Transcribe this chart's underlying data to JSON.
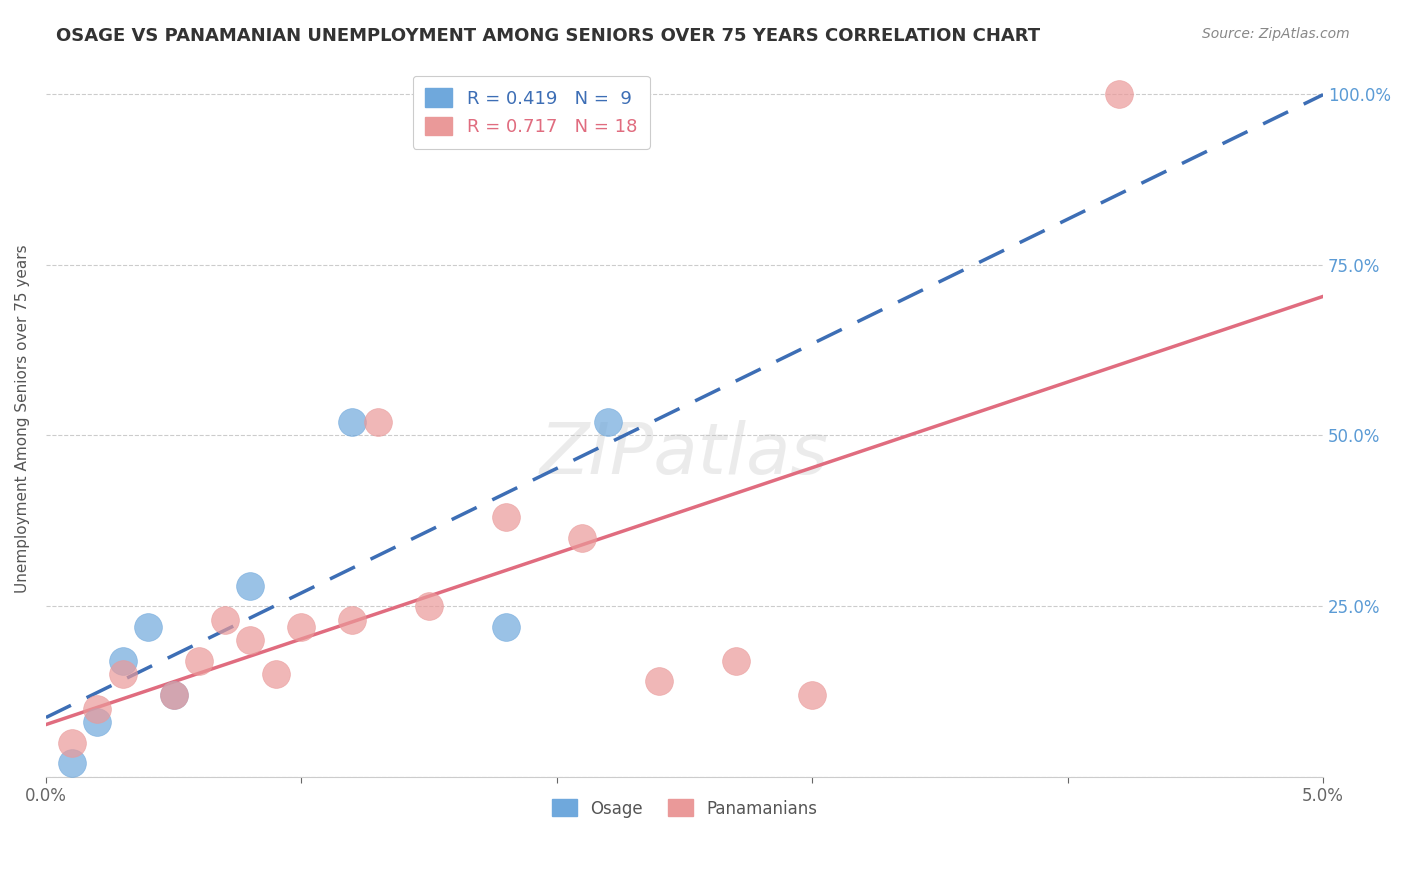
{
  "title": "OSAGE VS PANAMANIAN UNEMPLOYMENT AMONG SENIORS OVER 75 YEARS CORRELATION CHART",
  "source": "Source: ZipAtlas.com",
  "ylabel": "Unemployment Among Seniors over 75 years",
  "xlim": [
    0.0,
    0.05
  ],
  "ylim": [
    0.0,
    1.05
  ],
  "xticks": [
    0.0,
    0.01,
    0.02,
    0.03,
    0.04,
    0.05
  ],
  "xtick_labels": [
    "0.0%",
    "",
    "",
    "",
    "",
    "5.0%"
  ],
  "ytick_labels_right": [
    "",
    "25.0%",
    "50.0%",
    "75.0%",
    "100.0%"
  ],
  "yticks_right": [
    0.0,
    0.25,
    0.5,
    0.75,
    1.0
  ],
  "legend_osage_R": "R = 0.419",
  "legend_osage_N": "N =  9",
  "legend_pana_R": "R = 0.717",
  "legend_pana_N": "N = 18",
  "osage_color": "#6fa8dc",
  "pana_color": "#ea9999",
  "osage_line_color": "#3d6eb5",
  "pana_line_color": "#e06c7f",
  "grid_color": "#cccccc",
  "watermark": "ZIPatlas",
  "watermark_color": "#c0c0c0",
  "osage_scatter_x": [
    0.001,
    0.002,
    0.003,
    0.004,
    0.005,
    0.008,
    0.012,
    0.018,
    0.022
  ],
  "osage_scatter_y": [
    0.02,
    0.08,
    0.17,
    0.22,
    0.12,
    0.28,
    0.52,
    0.22,
    0.52
  ],
  "pana_scatter_x": [
    0.001,
    0.002,
    0.003,
    0.005,
    0.006,
    0.007,
    0.008,
    0.009,
    0.01,
    0.012,
    0.013,
    0.015,
    0.018,
    0.021,
    0.024,
    0.027,
    0.03,
    0.042
  ],
  "pana_scatter_y": [
    0.05,
    0.1,
    0.15,
    0.12,
    0.17,
    0.23,
    0.2,
    0.15,
    0.22,
    0.23,
    0.52,
    0.25,
    0.38,
    0.35,
    0.14,
    0.17,
    0.12,
    1.0
  ],
  "background_color": "#ffffff"
}
